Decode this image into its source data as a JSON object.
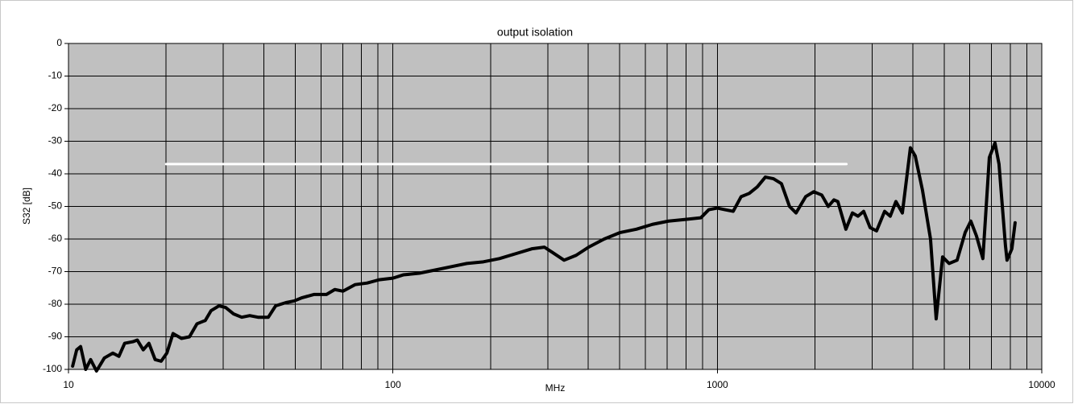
{
  "chart_data": {
    "type": "line",
    "title": "output isolation",
    "xlabel": "MHz",
    "ylabel": "S32 [dB]",
    "xscale": "log",
    "xlim": [
      10,
      10000
    ],
    "ylim": [
      -100,
      0
    ],
    "xticks": [
      10,
      100,
      1000,
      10000
    ],
    "xminorticks": [
      20,
      30,
      40,
      50,
      60,
      70,
      80,
      90,
      200,
      300,
      400,
      500,
      600,
      700,
      800,
      900,
      2000,
      3000,
      4000,
      5000,
      6000,
      7000,
      8000,
      9000
    ],
    "yticks": [
      0,
      -10,
      -20,
      -30,
      -40,
      -50,
      -60,
      -70,
      -80,
      -90,
      -100
    ],
    "grid": true,
    "background": "#c0c0c0",
    "series": [
      {
        "color": "#ffffff",
        "x": [
          20,
          2500
        ],
        "values": [
          -37,
          -37
        ]
      },
      {
        "color": "#000000",
        "x": [
          10.3,
          10.6,
          10.9,
          11.3,
          11.7,
          12.2,
          12.9,
          13.7,
          14.3,
          14.9,
          15.8,
          16.3,
          17.0,
          17.7,
          18.5,
          19.3,
          20.1,
          21,
          22.3,
          23.6,
          24.9,
          26.4,
          27.5,
          29.1,
          30.5,
          32.3,
          34.2,
          36.2,
          38.4,
          41.3,
          43.5,
          46.8,
          49.6,
          52.5,
          57.2,
          62.4,
          66.2,
          70.2,
          76.4,
          83.3,
          90.7,
          100,
          107.6,
          120.6,
          135,
          151,
          169,
          190,
          213,
          239,
          268,
          293,
          309,
          337,
          367,
          401,
          448,
          502,
          563,
          631,
          707,
          793,
          889,
          941,
          1000,
          1056,
          1119,
          1184,
          1254,
          1328,
          1406,
          1489,
          1576,
          1669,
          1748,
          1872,
          1982,
          2098,
          2197,
          2287,
          2352,
          2490,
          2608,
          2714,
          2825,
          2957,
          3096,
          3278,
          3411,
          3551,
          3718,
          3936,
          4073,
          4288,
          4540,
          4726,
          4947,
          5180,
          5483,
          5806,
          6043,
          6288,
          6584,
          6892,
          7173,
          7382,
          7727,
          7815,
          8088,
          8276
        ],
        "values": [
          -99,
          -94,
          -93,
          -100,
          -97,
          -100.5,
          -96.5,
          -95,
          -96,
          -92,
          -91.5,
          -91,
          -94,
          -92,
          -97,
          -97.5,
          -95,
          -89,
          -90.5,
          -90,
          -86,
          -85,
          -82,
          -80.5,
          -81,
          -83,
          -84,
          -83.5,
          -84,
          -84,
          -80.5,
          -79.5,
          -79,
          -78,
          -77,
          -77,
          -75.5,
          -76,
          -74,
          -73.5,
          -72.5,
          -72,
          -71,
          -70.5,
          -69.5,
          -68.5,
          -67.5,
          -67,
          -66,
          -64.5,
          -63,
          -62.5,
          -64,
          -66.5,
          -65,
          -62.5,
          -60,
          -58,
          -57,
          -55.5,
          -54.5,
          -54,
          -53.5,
          -51,
          -50.5,
          -51,
          -51.5,
          -47,
          -46,
          -44,
          -41,
          -41.5,
          -43,
          -50,
          -52,
          -47,
          -45.5,
          -46.5,
          -50,
          -48,
          -48.5,
          -57,
          -52,
          -53,
          -51.5,
          -56.5,
          -57.5,
          -51.5,
          -53,
          -48.5,
          -52,
          -32,
          -34.5,
          -45,
          -60,
          -84.5,
          -65.5,
          -67.5,
          -66.5,
          -58,
          -54.5,
          -59,
          -66,
          -35,
          -30.5,
          -37,
          -62,
          -66.5,
          -63,
          -55
        ]
      }
    ]
  }
}
